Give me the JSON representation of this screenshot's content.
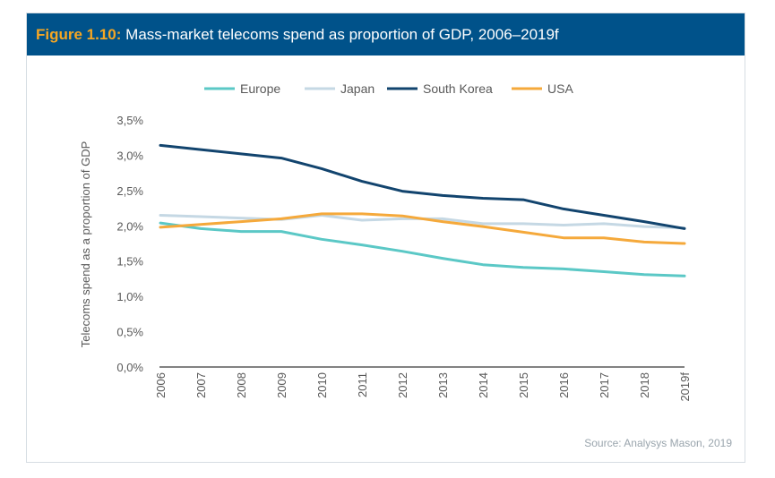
{
  "header": {
    "figure_label": "Figure 1.10:",
    "title": "Mass-market telecoms spend as proportion of GDP, 2006–2019f"
  },
  "source": "Source: Analysys Mason, 2019",
  "chart_data": {
    "type": "line",
    "title": "Mass-market telecoms spend as proportion of GDP, 2006–2019f",
    "xlabel": "",
    "ylabel": "Telecoms spend as a proportion of GDP",
    "ylim": [
      0,
      3.5
    ],
    "y_ticks": [
      "0,0%",
      "0,5%",
      "1,0%",
      "1,5%",
      "2,0%",
      "2,5%",
      "3,0%",
      "3,5%"
    ],
    "grid": false,
    "legend_position": "top",
    "categories": [
      "2006",
      "2007",
      "2008",
      "2009",
      "2010",
      "2011",
      "2012",
      "2013",
      "2014",
      "2015",
      "2016",
      "2017",
      "2018",
      "2019f"
    ],
    "series": [
      {
        "name": "Europe",
        "color": "#5bc8c6",
        "values": [
          2.04,
          1.96,
          1.92,
          1.92,
          1.81,
          1.73,
          1.64,
          1.54,
          1.45,
          1.41,
          1.39,
          1.35,
          1.31,
          1.29
        ]
      },
      {
        "name": "Japan",
        "color": "#c5d8e4",
        "values": [
          2.15,
          2.13,
          2.11,
          2.09,
          2.15,
          2.08,
          2.1,
          2.1,
          2.03,
          2.03,
          2.01,
          2.03,
          1.99,
          1.97
        ]
      },
      {
        "name": "South Korea",
        "color": "#12446e",
        "values": [
          3.14,
          3.08,
          3.02,
          2.96,
          2.81,
          2.63,
          2.49,
          2.43,
          2.39,
          2.37,
          2.24,
          2.15,
          2.06,
          1.96
        ]
      },
      {
        "name": "USA",
        "color": "#f5a93b",
        "values": [
          1.98,
          2.02,
          2.06,
          2.1,
          2.17,
          2.17,
          2.14,
          2.06,
          1.99,
          1.91,
          1.83,
          1.83,
          1.77,
          1.75
        ]
      }
    ]
  }
}
